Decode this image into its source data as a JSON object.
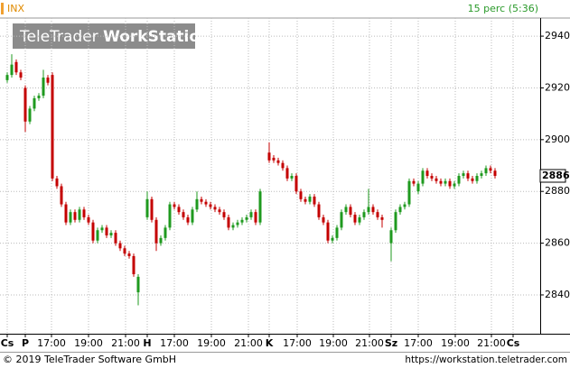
{
  "chart_data": {
    "type": "candlestick",
    "title": "INX",
    "subtitle": "15 perc (5:36)",
    "watermark": [
      "TeleTrader",
      "WorkStation"
    ],
    "footer_left": "© 2019 TeleTrader Software GmbH",
    "footer_right": "https://workstation.teletrader.com",
    "last_price": 2886,
    "ylim": [
      2825,
      2947
    ],
    "yticks": [
      2840,
      2860,
      2880,
      2900,
      2920,
      2940
    ],
    "xlim": [
      -1.6,
      118
    ],
    "xticks": [
      {
        "value": 0,
        "label": "Cs"
      },
      {
        "value": 4,
        "label": "P"
      },
      {
        "value": 9.8,
        "label": "17:00"
      },
      {
        "value": 18,
        "label": "19:00"
      },
      {
        "value": 26.2,
        "label": "21:00"
      },
      {
        "value": 31,
        "label": "H"
      },
      {
        "value": 37,
        "label": "17:00"
      },
      {
        "value": 45.2,
        "label": "19:00"
      },
      {
        "value": 53.4,
        "label": "21:00"
      },
      {
        "value": 58,
        "label": "K"
      },
      {
        "value": 64.2,
        "label": "17:00"
      },
      {
        "value": 72.2,
        "label": "19:00"
      },
      {
        "value": 80.2,
        "label": "21:00"
      },
      {
        "value": 85,
        "label": "Sz"
      },
      {
        "value": 91,
        "label": "17:00"
      },
      {
        "value": 99.2,
        "label": "19:00"
      },
      {
        "value": 107.2,
        "label": "21:00"
      },
      {
        "value": 112,
        "label": "Cs"
      }
    ],
    "grid": true,
    "up_color": "#1f9a1f",
    "down_color": "#c40000",
    "x": [
      0,
      1,
      2,
      3,
      4,
      5,
      6,
      7,
      8,
      9,
      10,
      11,
      12,
      13,
      14,
      15,
      16,
      17,
      18,
      19,
      20,
      21,
      22,
      23,
      24,
      25,
      26,
      27,
      28,
      29,
      31,
      32,
      33,
      34,
      35,
      36,
      37,
      38,
      39,
      40,
      41,
      42,
      43,
      44,
      45,
      46,
      47,
      48,
      49,
      50,
      51,
      52,
      53,
      54,
      55,
      56,
      58,
      59,
      60,
      61,
      62,
      63,
      64,
      65,
      66,
      67,
      68,
      69,
      70,
      71,
      72,
      73,
      74,
      75,
      76,
      77,
      78,
      79,
      80,
      81,
      82,
      83,
      85,
      86,
      87,
      88,
      89,
      90,
      91,
      92,
      93,
      94,
      95,
      96,
      97,
      98,
      99,
      100,
      101,
      102,
      103,
      104,
      105,
      106,
      107,
      108
    ],
    "open": [
      2923,
      2925,
      2930,
      2926,
      2920,
      2907,
      2912,
      2916,
      2917,
      2924,
      2925,
      2885,
      2882,
      2875,
      2868,
      2872,
      2869,
      2873,
      2870,
      2868,
      2861,
      2865,
      2866,
      2863,
      2864,
      2860,
      2858,
      2856,
      2855,
      2841,
      2870,
      2877,
      2869,
      2860,
      2862,
      2866,
      2875,
      2874,
      2872,
      2870,
      2868,
      2873,
      2877,
      2876,
      2875,
      2874,
      2873,
      2872,
      2870,
      2866,
      2867,
      2868,
      2869,
      2870,
      2872,
      2868,
      2895,
      2893,
      2892,
      2891,
      2889,
      2885,
      2886,
      2880,
      2877,
      2876,
      2878,
      2875,
      2870,
      2868,
      2861,
      2862,
      2866,
      2872,
      2874,
      2871,
      2868,
      2870,
      2872,
      2874,
      2872,
      2870,
      2860,
      2865,
      2872,
      2874,
      2875,
      2884,
      2880,
      2883,
      2888,
      2886,
      2885,
      2884,
      2883,
      2884,
      2882,
      2883,
      2886,
      2887,
      2885,
      2884,
      2886,
      2887,
      2889,
      2888
    ],
    "high": [
      2926,
      2933,
      2931,
      2927,
      2921,
      2913,
      2917,
      2918,
      2927,
      2925,
      2926,
      2886,
      2883,
      2876,
      2873,
      2873,
      2874,
      2874,
      2871,
      2869,
      2866,
      2867,
      2867,
      2865,
      2865,
      2861,
      2859,
      2857,
      2856,
      2848,
      2880,
      2878,
      2870,
      2863,
      2867,
      2876,
      2876,
      2875,
      2873,
      2871,
      2874,
      2880,
      2878,
      2877,
      2876,
      2875,
      2874,
      2873,
      2871,
      2868,
      2869,
      2870,
      2871,
      2873,
      2873,
      2881,
      2899,
      2894,
      2893,
      2892,
      2890,
      2887,
      2887,
      2881,
      2878,
      2879,
      2879,
      2876,
      2871,
      2869,
      2863,
      2867,
      2873,
      2875,
      2875,
      2872,
      2871,
      2873,
      2881,
      2875,
      2873,
      2871,
      2866,
      2873,
      2875,
      2876,
      2885,
      2885,
      2884,
      2889,
      2889,
      2887,
      2886,
      2885,
      2885,
      2885,
      2884,
      2887,
      2888,
      2888,
      2886,
      2887,
      2888,
      2890,
      2890,
      2889
    ],
    "low": [
      2922,
      2924,
      2925,
      2923,
      2903,
      2906,
      2911,
      2915,
      2916,
      2921,
      2884,
      2881,
      2874,
      2867,
      2867,
      2868,
      2868,
      2869,
      2867,
      2860,
      2860,
      2864,
      2862,
      2862,
      2859,
      2857,
      2855,
      2854,
      2847,
      2836,
      2869,
      2868,
      2857,
      2859,
      2861,
      2865,
      2873,
      2871,
      2869,
      2867,
      2867,
      2872,
      2875,
      2874,
      2873,
      2872,
      2871,
      2869,
      2865,
      2865,
      2866,
      2867,
      2868,
      2869,
      2867,
      2867,
      2891,
      2891,
      2890,
      2888,
      2884,
      2884,
      2879,
      2876,
      2875,
      2875,
      2874,
      2869,
      2867,
      2860,
      2860,
      2861,
      2865,
      2871,
      2870,
      2867,
      2867,
      2869,
      2871,
      2871,
      2869,
      2866,
      2853,
      2864,
      2871,
      2873,
      2874,
      2882,
      2879,
      2882,
      2885,
      2884,
      2883,
      2882,
      2882,
      2881,
      2881,
      2882,
      2885,
      2884,
      2883,
      2883,
      2885,
      2886,
      2887,
      2885
    ],
    "close": [
      2925,
      2929,
      2926,
      2924,
      2907,
      2912,
      2916,
      2917,
      2924,
      2922,
      2885,
      2882,
      2875,
      2868,
      2872,
      2869,
      2873,
      2870,
      2868,
      2861,
      2865,
      2866,
      2863,
      2864,
      2860,
      2858,
      2856,
      2855,
      2848,
      2847,
      2877,
      2869,
      2860,
      2862,
      2866,
      2875,
      2874,
      2872,
      2870,
      2868,
      2873,
      2877,
      2876,
      2875,
      2874,
      2873,
      2872,
      2870,
      2866,
      2867,
      2868,
      2869,
      2870,
      2872,
      2868,
      2880,
      2892,
      2892,
      2891,
      2889,
      2885,
      2886,
      2880,
      2877,
      2876,
      2878,
      2875,
      2870,
      2868,
      2861,
      2862,
      2866,
      2872,
      2874,
      2871,
      2868,
      2870,
      2872,
      2874,
      2872,
      2870,
      2869,
      2865,
      2872,
      2874,
      2875,
      2884,
      2883,
      2883,
      2888,
      2886,
      2885,
      2884,
      2883,
      2884,
      2882,
      2883,
      2886,
      2887,
      2885,
      2884,
      2886,
      2887,
      2889,
      2888,
      2886
    ]
  }
}
